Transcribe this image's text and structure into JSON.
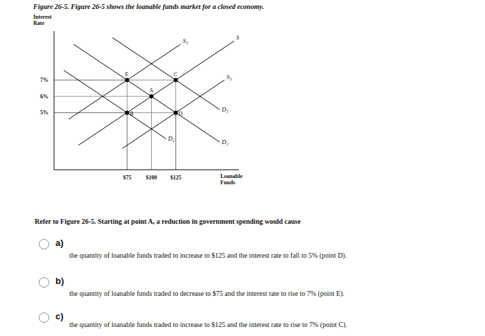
{
  "chart_data": {
    "type": "line",
    "title": "Figure 26-5. Figure 26-5 shows the loanable funds market for a closed economy.",
    "y_label": "Interest Rate",
    "x_label": "Loanable Funds",
    "xlim": [
      0,
      190
    ],
    "ylim": [
      1.5,
      10
    ],
    "xticks": [
      {
        "value": 75,
        "label": "$75"
      },
      {
        "value": 100,
        "label": "$100"
      },
      {
        "value": 125,
        "label": "$125"
      }
    ],
    "yticks": [
      {
        "value": 5,
        "label": "5%"
      },
      {
        "value": 6,
        "label": "6%"
      },
      {
        "value": 7,
        "label": "7%"
      }
    ],
    "grid": false,
    "series": [
      {
        "name": "S₁",
        "color": "#000000",
        "x": [
          25,
          185
        ],
        "values": [
          3,
          9.4
        ]
      },
      {
        "name": "S₂",
        "color": "#000000",
        "x": [
          70,
          175
        ],
        "values": [
          2.8,
          7
        ]
      },
      {
        "name": "S₃",
        "color": "#000000",
        "x": [
          15,
          130
        ],
        "values": [
          4.6,
          9.2
        ]
      },
      {
        "name": "D₁",
        "color": "#000000",
        "x": [
          20,
          170
        ],
        "values": [
          9.2,
          3.2
        ]
      },
      {
        "name": "D₂",
        "color": "#000000",
        "x": [
          10,
          115
        ],
        "values": [
          7.6,
          3.4
        ]
      },
      {
        "name": "D₃",
        "color": "#000000",
        "x": [
          60,
          170
        ],
        "values": [
          9.6,
          5.2
        ]
      }
    ],
    "points": [
      {
        "label": "E",
        "x": 75,
        "y": 7
      },
      {
        "label": "A",
        "x": 100,
        "y": 6
      },
      {
        "label": "C",
        "x": 125,
        "y": 7
      },
      {
        "label": "B",
        "x": 75,
        "y": 5
      },
      {
        "label": "D",
        "x": 125,
        "y": 5
      }
    ]
  },
  "question": "Refer to Figure 26-5. Starting at point A, a reduction in government spending would cause",
  "options": [
    {
      "letter": "a)",
      "text": "the quantity of loanable funds traded to increase to $125 and the interest rate to fall to 5% (point D)."
    },
    {
      "letter": "b)",
      "text": "the quantity of loanable funds traded to decrease to $75 and the interest rate to rise to 7% (point E)."
    },
    {
      "letter": "c)",
      "text": "the quantity of loanable funds traded to increase to $125 and the interest rate to rise to 7% (point C)."
    }
  ]
}
